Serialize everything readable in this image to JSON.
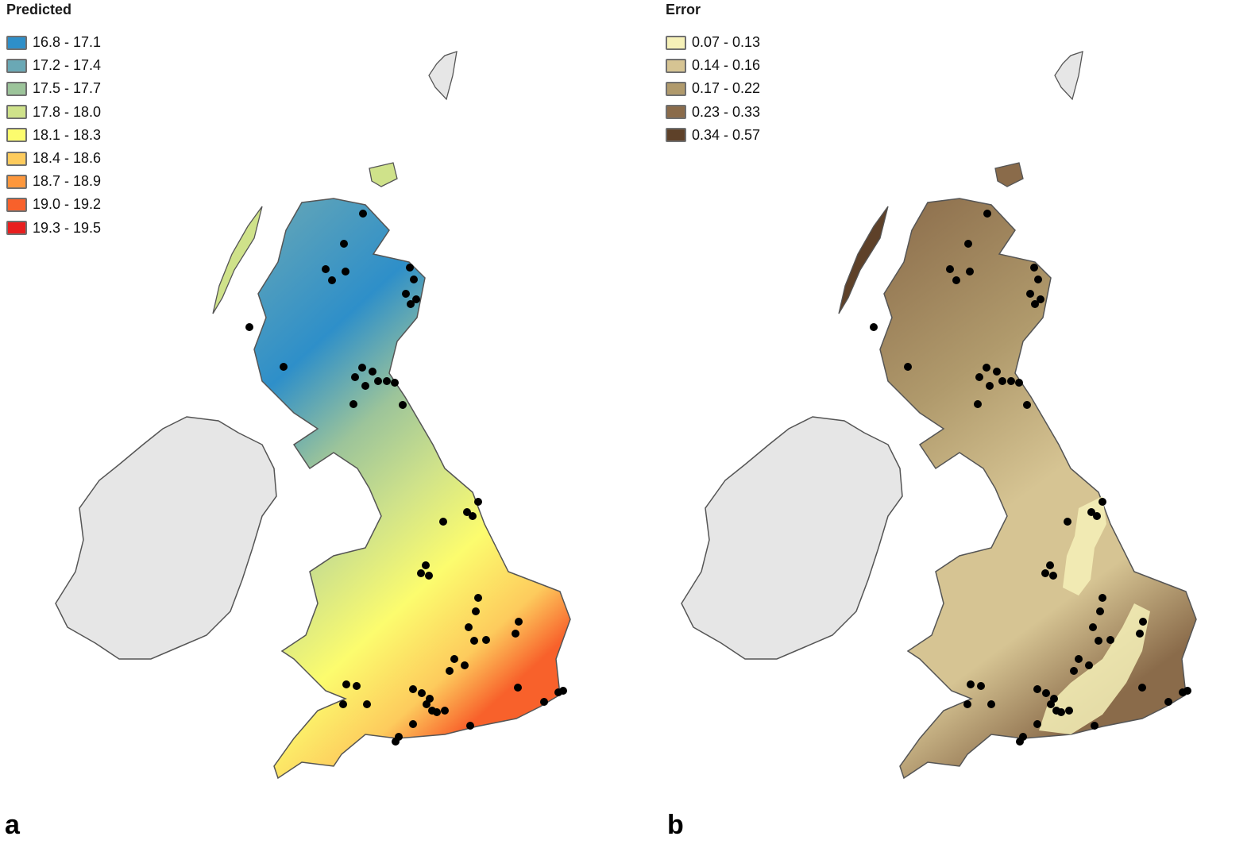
{
  "panel_a": {
    "letter": "a",
    "legend_title": "Predicted",
    "legend": [
      {
        "label": "16.8 - 17.1",
        "color": "#2e8fc9"
      },
      {
        "label": "17.2 - 17.4",
        "color": "#6aa8b5"
      },
      {
        "label": "17.5 - 17.7",
        "color": "#9cc49a"
      },
      {
        "label": "17.8 - 18.0",
        "color": "#cfe28a"
      },
      {
        "label": "18.1 - 18.3",
        "color": "#fcfc6e"
      },
      {
        "label": "18.4 - 18.6",
        "color": "#fdcb5d"
      },
      {
        "label": "18.7 - 18.9",
        "color": "#fd973c"
      },
      {
        "label": "19.0 - 19.2",
        "color": "#f8612b"
      },
      {
        "label": "19.3 - 19.5",
        "color": "#e81e1e"
      }
    ]
  },
  "panel_b": {
    "letter": "b",
    "legend_title": "Error",
    "legend": [
      {
        "label": "0.07 - 0.13",
        "color": "#f6f1b8"
      },
      {
        "label": "0.14 - 0.16",
        "color": "#d6c493"
      },
      {
        "label": "0.17 - 0.22",
        "color": "#b09a6c"
      },
      {
        "label": "0.23 - 0.33",
        "color": "#8a6b4a"
      },
      {
        "label": "0.34 - 0.57",
        "color": "#5e4129"
      }
    ]
  },
  "colors": {
    "ireland_fill": "#e6e6e6",
    "coast_stroke": "#555555",
    "site_dot": "#000000"
  }
}
